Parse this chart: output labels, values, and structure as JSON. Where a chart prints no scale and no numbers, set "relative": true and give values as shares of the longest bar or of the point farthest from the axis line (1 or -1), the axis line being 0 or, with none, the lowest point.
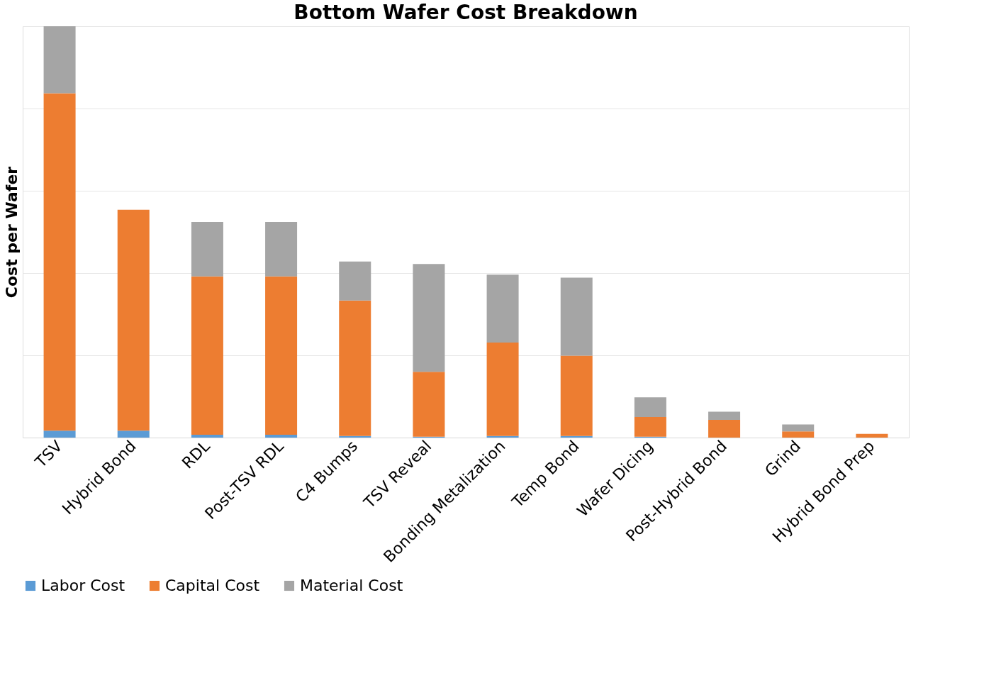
{
  "chart_data": {
    "type": "bar",
    "title": "Bottom Wafer Cost Breakdown",
    "ylabel": "Cost per Wafer",
    "relative": true,
    "stacked": true,
    "grid": "y",
    "legend": "bottom",
    "categories": [
      "TSV",
      "Hybrid Bond",
      "RDL",
      "Post-TSV RDL",
      "C4 Bumps",
      "TSV Reveal",
      "Bonding Metalization",
      "Temp Bond",
      "Wafer Dicing",
      "Post-Hybrid Bond",
      "Grind",
      "Hybrid Bond Prep"
    ],
    "series": [
      {
        "name": "Labor Cost",
        "color": "#5b9bd5",
        "values": [
          0.017,
          0.017,
          0.007,
          0.007,
          0.004,
          0.002,
          0.004,
          0.004,
          0.002,
          0,
          0,
          0
        ]
      },
      {
        "name": "Capital Cost",
        "color": "#ed7d31",
        "values": [
          0.82,
          0.537,
          0.385,
          0.385,
          0.329,
          0.158,
          0.227,
          0.195,
          0.048,
          0.043,
          0.015,
          0.009
        ]
      },
      {
        "name": "Material Cost",
        "color": "#a5a5a5",
        "values": [
          0.163,
          0,
          0.132,
          0.132,
          0.095,
          0.262,
          0.165,
          0.19,
          0.048,
          0.02,
          0.017,
          0
        ]
      }
    ]
  }
}
